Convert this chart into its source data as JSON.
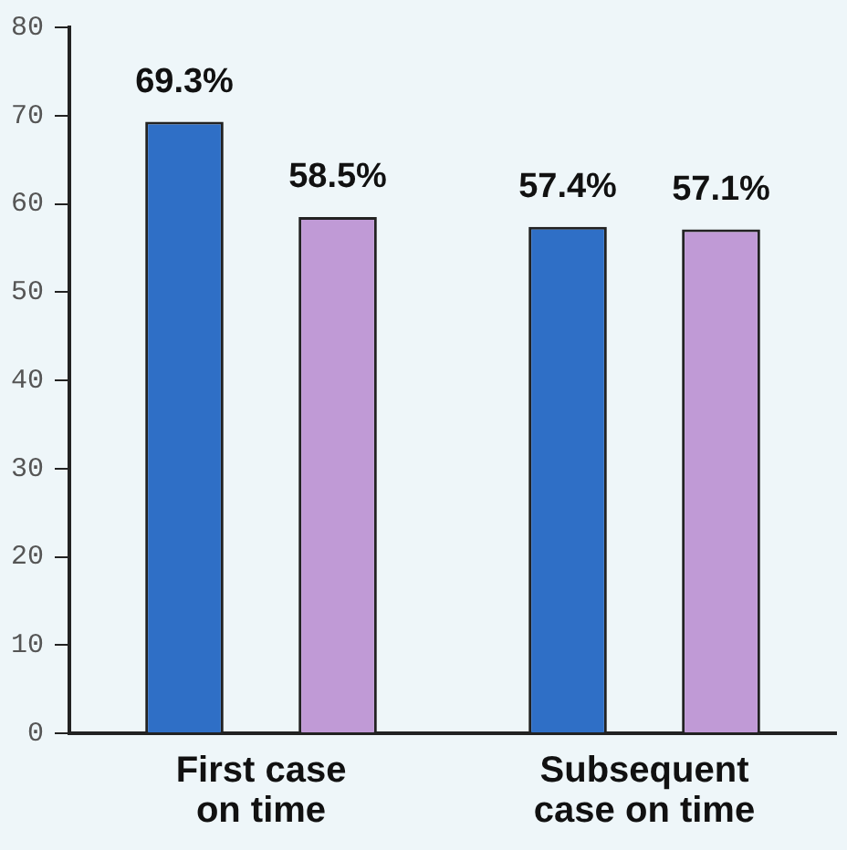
{
  "chart_data": {
    "type": "bar",
    "categories": [
      "First case\non time",
      "Subsequent\ncase on time"
    ],
    "series": [
      {
        "color": "#2f6fc6",
        "values": [
          69.3,
          57.4
        ],
        "value_labels": [
          "69.3%",
          "57.4%"
        ]
      },
      {
        "color": "#c09ad6",
        "values": [
          58.5,
          57.1
        ],
        "value_labels": [
          "58.5%",
          "57.1%"
        ]
      }
    ],
    "ylim": [
      0,
      80
    ],
    "yticks": [
      0,
      10,
      20,
      30,
      40,
      50,
      60,
      70,
      80
    ],
    "grid": false,
    "legend": false
  }
}
